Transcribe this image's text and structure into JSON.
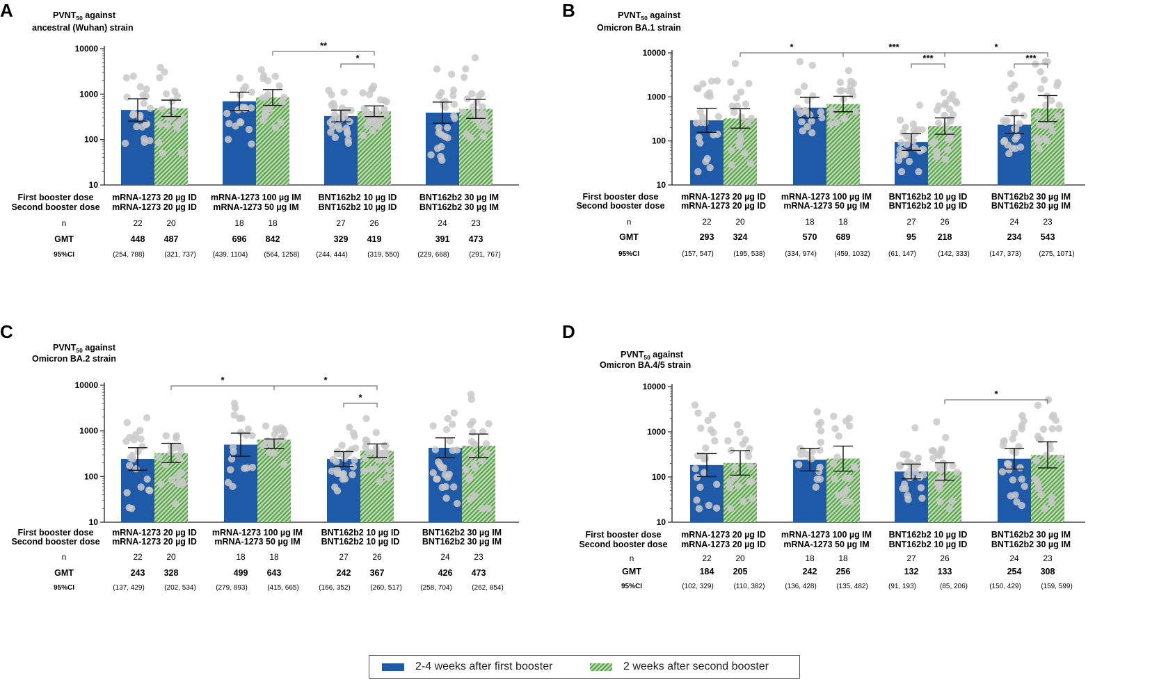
{
  "colors": {
    "first": "#1e5aa8",
    "second": "#5ea152",
    "second_light": "#bfe0b4",
    "dots": "#c9c9c9"
  },
  "legend": {
    "first": "2-4 weeks after first booster",
    "second": "2 weeks after second booster"
  },
  "chart_data": [
    {
      "type": "bar",
      "panel": "A",
      "title": [
        "PVNT",
        "50",
        " against",
        "ancestral (Wuhan) strain"
      ],
      "yscale": "log10",
      "ylim": [
        10,
        10000
      ],
      "yticks": [
        "10",
        "100",
        "1000",
        "10000"
      ],
      "rows": {
        "first": "First booster dose",
        "second": "Second booster dose",
        "n": "n",
        "gmt": "GMT",
        "ci": "95%CI"
      },
      "groups": [
        {
          "first_label": "mRNA-1273 20 µg ID",
          "second_label": "mRNA-1273 20 µg ID",
          "values": [
            448,
            487
          ],
          "ci": [
            [
              254,
              788
            ],
            [
              321,
              737
            ]
          ],
          "n": [
            "22",
            "20"
          ],
          "gmt": [
            "448",
            "487"
          ],
          "ci_text": [
            "(254, 788)",
            "(321, 737)"
          ]
        },
        {
          "first_label": "mRNA-1273 100 µg IM",
          "second_label": "mRNA-1273 50 µg IM",
          "values": [
            696,
            842
          ],
          "ci": [
            [
              439,
              1104
            ],
            [
              564,
              1258
            ]
          ],
          "n": [
            "18",
            "18"
          ],
          "gmt": [
            "696",
            "842"
          ],
          "ci_text": [
            "(439, 1104)",
            "(564, 1258)"
          ]
        },
        {
          "first_label": "BNT162b2 10 µg ID",
          "second_label": "BNT162b2 10 µg ID",
          "values": [
            329,
            419
          ],
          "ci": [
            [
              244,
              444
            ],
            [
              319,
              550
            ]
          ],
          "n": [
            "27",
            "26"
          ],
          "gmt": [
            "329",
            "419"
          ],
          "ci_text": [
            "(244, 444)",
            "(319, 550)"
          ]
        },
        {
          "first_label": "BNT162b2 30 µg IM",
          "second_label": "BNT162b2 30 µg IM",
          "values": [
            391,
            473
          ],
          "ci": [
            [
              229,
              668
            ],
            [
              291,
              767
            ]
          ],
          "n": [
            "24",
            "23"
          ],
          "gmt": [
            "391",
            "473"
          ],
          "ci_text": [
            "(229, 668)",
            "(291, 767)"
          ]
        }
      ],
      "significance": [
        {
          "from": [
            1,
            1
          ],
          "to": [
            2,
            1
          ],
          "label": "**",
          "level": 2
        },
        {
          "from": [
            2,
            0
          ],
          "to": [
            2,
            1
          ],
          "label": "*",
          "level": 1
        }
      ]
    },
    {
      "type": "bar",
      "panel": "B",
      "title": [
        "PVNT",
        "50",
        " against",
        "Omicron BA.1 strain"
      ],
      "yscale": "log10",
      "ylim": [
        10,
        10000
      ],
      "yticks": [
        "10",
        "100",
        "1000",
        "10000"
      ],
      "rows": {
        "first": "First  booster dose",
        "second": "Second booster dose",
        "n": "n",
        "gmt": "GMT",
        "ci": "95%CI"
      },
      "groups": [
        {
          "first_label": "mRNA-1273 20 µg ID",
          "second_label": "mRNA-1273 20 µg ID",
          "values": [
            293,
            324
          ],
          "ci": [
            [
              157,
              547
            ],
            [
              195,
              538
            ]
          ],
          "n": [
            "22",
            "20"
          ],
          "gmt": [
            "293",
            "324"
          ],
          "ci_text": [
            "(157, 547)",
            "(195, 538)"
          ]
        },
        {
          "first_label": "mRNA-1273 100 µg IM",
          "second_label": "mRNA-1273 50 µg IM",
          "values": [
            570,
            689
          ],
          "ci": [
            [
              334,
              974
            ],
            [
              459,
              1032
            ]
          ],
          "n": [
            "18",
            "18"
          ],
          "gmt": [
            "570",
            "689"
          ],
          "ci_text": [
            "(334, 974)",
            "(459, 1032)"
          ]
        },
        {
          "first_label": "BNT162b2 10 µg ID",
          "second_label": "BNT162b2 10 µg ID",
          "values": [
            95,
            218
          ],
          "ci": [
            [
              61,
              147
            ],
            [
              142,
              333
            ]
          ],
          "n": [
            "27",
            "26"
          ],
          "gmt": [
            "95",
            "218"
          ],
          "ci_text": [
            "(61, 147)",
            "(142, 333)"
          ]
        },
        {
          "first_label": "BNT162b2 30 µg IM",
          "second_label": "BNT162b2 30 µg IM",
          "values": [
            234,
            543
          ],
          "ci": [
            [
              147,
              373
            ],
            [
              275,
              1071
            ]
          ],
          "n": [
            "24",
            "23"
          ],
          "gmt": [
            "234",
            "543"
          ],
          "ci_text": [
            "(147, 373)",
            "(275, 1071)"
          ]
        }
      ],
      "significance": [
        {
          "from": [
            0,
            1
          ],
          "to": [
            1,
            1
          ],
          "label": "*",
          "level": 2
        },
        {
          "from": [
            1,
            1
          ],
          "to": [
            2,
            1
          ],
          "label": "***",
          "level": 2
        },
        {
          "from": [
            2,
            0
          ],
          "to": [
            2,
            1
          ],
          "label": "***",
          "level": 1
        },
        {
          "from": [
            2,
            1
          ],
          "to": [
            3,
            1
          ],
          "label": "*",
          "level": 2
        },
        {
          "from": [
            3,
            0
          ],
          "to": [
            3,
            1
          ],
          "label": "***",
          "level": 1
        }
      ]
    },
    {
      "type": "bar",
      "panel": "C",
      "title": [
        "PVNT",
        "50",
        " against",
        "Omicron BA.2 strain"
      ],
      "yscale": "log10",
      "ylim": [
        10,
        10000
      ],
      "yticks": [
        "10",
        "100",
        "1000",
        "10000"
      ],
      "rows": {
        "first": "First  booster dose",
        "second": "Second booster dose",
        "n": "n",
        "gmt": "GMT",
        "ci": "95%CI"
      },
      "groups": [
        {
          "first_label": "mRNA-1273 20 µg ID",
          "second_label": "mRNA-1273 20 µg ID",
          "values": [
            243,
            328
          ],
          "ci": [
            [
              137,
              429
            ],
            [
              202,
              534
            ]
          ],
          "n": [
            "22",
            "20"
          ],
          "gmt": [
            "243",
            "328"
          ],
          "ci_text": [
            "(137, 429)",
            "(202, 534)"
          ]
        },
        {
          "first_label": "mRNA-1273 100 µg IM",
          "second_label": "mRNA-1273 50 µg IM",
          "values": [
            499,
            643
          ],
          "ci": [
            [
              279,
              893
            ],
            [
              415,
              665
            ]
          ],
          "n": [
            "18",
            "18"
          ],
          "gmt": [
            "499",
            "643"
          ],
          "ci_text": [
            "(279, 893)",
            "(415, 665)"
          ]
        },
        {
          "first_label": "BNT162b2 10 µg ID",
          "second_label": "BNT162b2 10 µg ID",
          "values": [
            242,
            367
          ],
          "ci": [
            [
              166,
              352
            ],
            [
              260,
              517
            ]
          ],
          "n": [
            "27",
            "26"
          ],
          "gmt": [
            "242",
            "367"
          ],
          "ci_text": [
            "(166, 352)",
            "(260, 517)"
          ]
        },
        {
          "first_label": "BNT162b2 30 µg IM",
          "second_label": "BNT162b2 30 µg IM",
          "values": [
            426,
            473
          ],
          "ci": [
            [
              258,
              704
            ],
            [
              262,
              854
            ]
          ],
          "n": [
            "24",
            "23"
          ],
          "gmt": [
            "426",
            "473"
          ],
          "ci_text": [
            "(258, 704)",
            "(262, 854)"
          ]
        }
      ],
      "significance": [
        {
          "from": [
            0,
            1
          ],
          "to": [
            1,
            1
          ],
          "label": "*",
          "level": 2
        },
        {
          "from": [
            1,
            1
          ],
          "to": [
            2,
            1
          ],
          "label": "*",
          "level": 2
        },
        {
          "from": [
            2,
            0
          ],
          "to": [
            2,
            1
          ],
          "label": "*",
          "level": 1
        }
      ]
    },
    {
      "type": "bar",
      "panel": "D",
      "title": [
        "PVNT",
        "50",
        " against",
        "Omicron BA.4/5 strain"
      ],
      "yscale": "log10",
      "ylim": [
        10,
        10000
      ],
      "yticks": [
        "10",
        "100",
        "1000",
        "10000"
      ],
      "rows": {
        "first": "First  booster dose",
        "second": "Second booster dose",
        "n": "n",
        "gmt": "GMT",
        "ci": "95%CI"
      },
      "groups": [
        {
          "first_label": "mRNA-1273 20 µg ID",
          "second_label": "mRNA-1273 20 µg ID",
          "values": [
            184,
            205
          ],
          "ci": [
            [
              102,
              329
            ],
            [
              110,
              382
            ]
          ],
          "n": [
            "22",
            "20"
          ],
          "gmt": [
            "184",
            "205"
          ],
          "ci_text": [
            "(102, 329)",
            "(110, 382)"
          ]
        },
        {
          "first_label": "mRNA-1273 100 µg IM",
          "second_label": "mRNA-1273 50 µg IM",
          "values": [
            242,
            256
          ],
          "ci": [
            [
              136,
              428
            ],
            [
              135,
              482
            ]
          ],
          "n": [
            "18",
            "18"
          ],
          "gmt": [
            "242",
            "256"
          ],
          "ci_text": [
            "(136, 428)",
            "(135, 482)"
          ]
        },
        {
          "first_label": "BNT162b2 10 µg ID",
          "second_label": "BNT162b2 10 µg ID",
          "values": [
            132,
            133
          ],
          "ci": [
            [
              91,
              193
            ],
            [
              85,
              206
            ]
          ],
          "n": [
            "27",
            "26"
          ],
          "gmt": [
            "132",
            "133"
          ],
          "ci_text": [
            "(91, 193)",
            "(85, 206)"
          ]
        },
        {
          "first_label": "BNT162b2 30 µg IM",
          "second_label": "BNT162b2 30 µg IM",
          "values": [
            254,
            308
          ],
          "ci": [
            [
              150,
              429
            ],
            [
              159,
              599
            ]
          ],
          "n": [
            "24",
            "23"
          ],
          "gmt": [
            "254",
            "308"
          ],
          "ci_text": [
            "(150, 429)",
            "(159, 599)"
          ]
        }
      ],
      "significance": [
        {
          "from": [
            2,
            1
          ],
          "to": [
            3,
            1
          ],
          "label": "*",
          "level": 2
        }
      ]
    }
  ]
}
